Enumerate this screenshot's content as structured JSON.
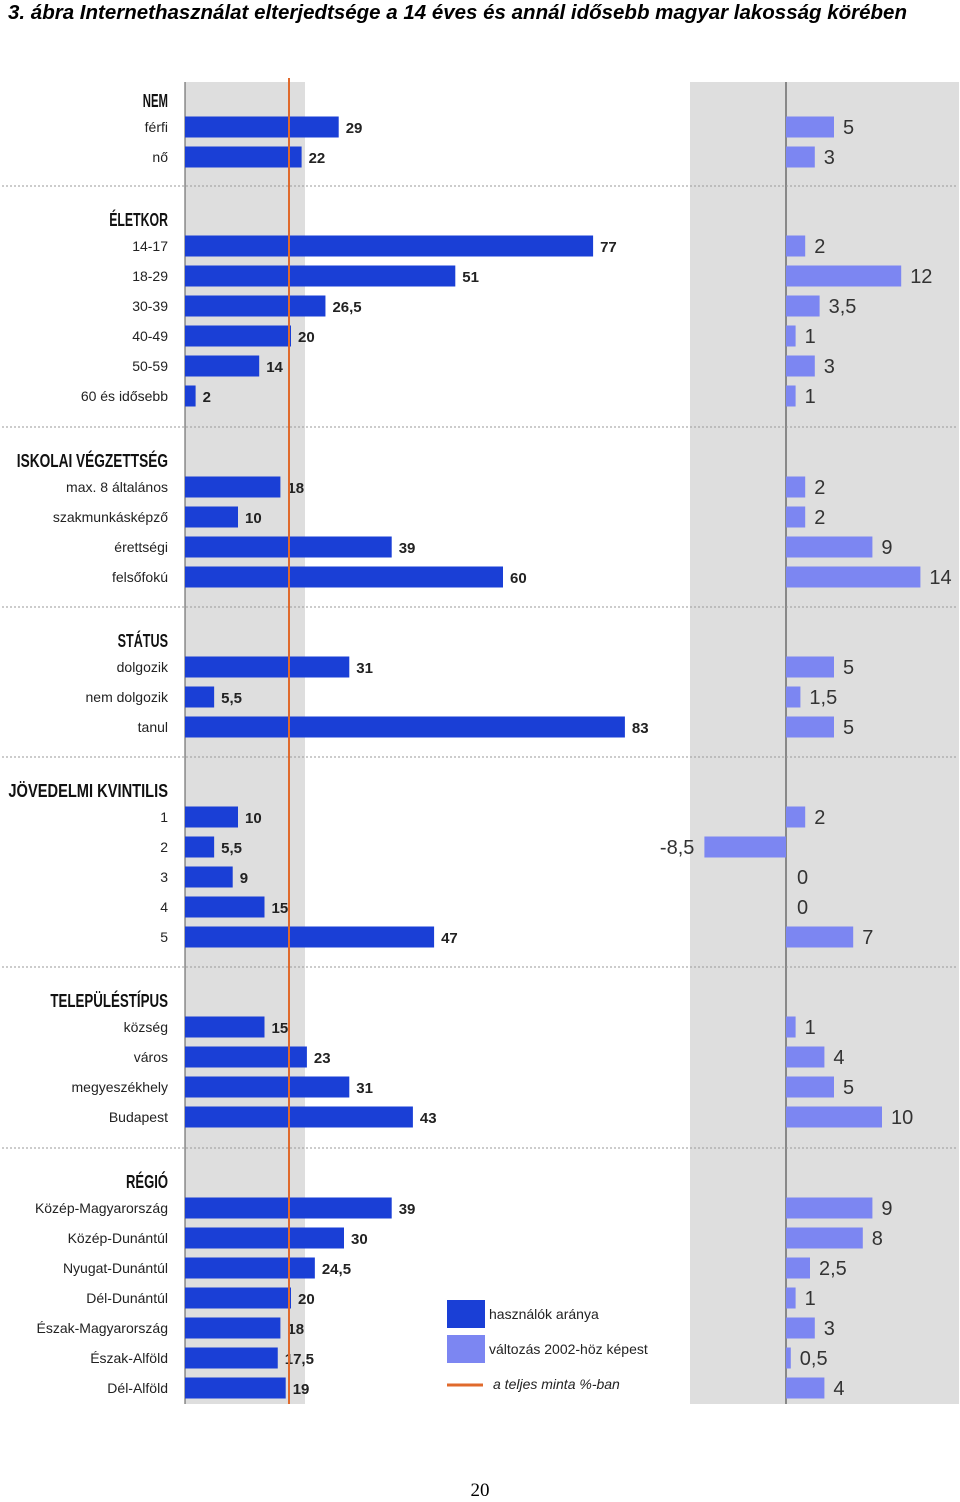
{
  "caption": "3. ábra Internethasználat elterjedtsége a 14 éves és annál idősebb magyar lakosság körében",
  "page_number": "20",
  "colors": {
    "usage_bar": "#1a3fd6",
    "change_bar": "#7c86f2",
    "shaded_panel": "#dedede",
    "sample_line": "#e06a2c"
  },
  "chart_data": {
    "type": "bar",
    "orientation": "horizontal",
    "sample_average": 20,
    "usage_axis_range": [
      0,
      100
    ],
    "change_axis_range": [
      -10,
      20
    ],
    "groups": [
      {
        "title": "NEM",
        "items": [
          {
            "label": "férfi",
            "usage": 29,
            "usage_label": "29",
            "change": 5,
            "change_label": "5"
          },
          {
            "label": "nő",
            "usage": 22,
            "usage_label": "22",
            "change": 3,
            "change_label": "3"
          }
        ]
      },
      {
        "title": "ÉLETKOR",
        "items": [
          {
            "label": "14-17",
            "usage": 77,
            "usage_label": "77",
            "change": 2,
            "change_label": "2"
          },
          {
            "label": "18-29",
            "usage": 51,
            "usage_label": "51",
            "change": 12,
            "change_label": "12"
          },
          {
            "label": "30-39",
            "usage": 26.5,
            "usage_label": "26,5",
            "change": 3.5,
            "change_label": "3,5"
          },
          {
            "label": "40-49",
            "usage": 20,
            "usage_label": "20",
            "change": 1,
            "change_label": "1"
          },
          {
            "label": "50-59",
            "usage": 14,
            "usage_label": "14",
            "change": 3,
            "change_label": "3"
          },
          {
            "label": "60 és idősebb",
            "usage": 2,
            "usage_label": "2",
            "change": 1,
            "change_label": "1"
          }
        ]
      },
      {
        "title": "ISKOLAI VÉGZETTSÉG",
        "items": [
          {
            "label": "max. 8 általános",
            "usage": 18,
            "usage_label": "18",
            "change": 2,
            "change_label": "2"
          },
          {
            "label": "szakmunkásképző",
            "usage": 10,
            "usage_label": "10",
            "change": 2,
            "change_label": "2"
          },
          {
            "label": "érettségi",
            "usage": 39,
            "usage_label": "39",
            "change": 9,
            "change_label": "9"
          },
          {
            "label": "felsőfokú",
            "usage": 60,
            "usage_label": "60",
            "change": 14,
            "change_label": "14"
          }
        ]
      },
      {
        "title": "STÁTUS",
        "items": [
          {
            "label": "dolgozik",
            "usage": 31,
            "usage_label": "31",
            "change": 5,
            "change_label": "5"
          },
          {
            "label": "nem dolgozik",
            "usage": 5.5,
            "usage_label": "5,5",
            "change": 1.5,
            "change_label": "1,5"
          },
          {
            "label": "tanul",
            "usage": 83,
            "usage_label": "83",
            "change": 5,
            "change_label": "5"
          }
        ]
      },
      {
        "title": "JÖVEDELMI KVINTILIS",
        "items": [
          {
            "label": "1",
            "usage": 10,
            "usage_label": "10",
            "change": 2,
            "change_label": "2"
          },
          {
            "label": "2",
            "usage": 5.5,
            "usage_label": "5,5",
            "change": -8.5,
            "change_label": "-8,5"
          },
          {
            "label": "3",
            "usage": 9,
            "usage_label": "9",
            "change": 0,
            "change_label": "0"
          },
          {
            "label": "4",
            "usage": 15,
            "usage_label": "15",
            "change": 0,
            "change_label": "0"
          },
          {
            "label": "5",
            "usage": 47,
            "usage_label": "47",
            "change": 7,
            "change_label": "7"
          }
        ]
      },
      {
        "title": "TELEPÜLÉSTÍPUS",
        "items": [
          {
            "label": "község",
            "usage": 15,
            "usage_label": "15",
            "change": 1,
            "change_label": "1"
          },
          {
            "label": "város",
            "usage": 23,
            "usage_label": "23",
            "change": 4,
            "change_label": "4"
          },
          {
            "label": "megyeszékhely",
            "usage": 31,
            "usage_label": "31",
            "change": 5,
            "change_label": "5"
          },
          {
            "label": "Budapest",
            "usage": 43,
            "usage_label": "43",
            "change": 10,
            "change_label": "10"
          }
        ]
      },
      {
        "title": "RÉGIÓ",
        "items": [
          {
            "label": "Közép-Magyarország",
            "usage": 39,
            "usage_label": "39",
            "change": 9,
            "change_label": "9"
          },
          {
            "label": "Közép-Dunántúl",
            "usage": 30,
            "usage_label": "30",
            "change": 8,
            "change_label": "8"
          },
          {
            "label": "Nyugat-Dunántúl",
            "usage": 24.5,
            "usage_label": "24,5",
            "change": 2.5,
            "change_label": "2,5"
          },
          {
            "label": "Dél-Dunántúl",
            "usage": 20,
            "usage_label": "20",
            "change": 1,
            "change_label": "1"
          },
          {
            "label": "Észak-Magyarország",
            "usage": 18,
            "usage_label": "18",
            "change": 3,
            "change_label": "3"
          },
          {
            "label": "Észak-Alföld",
            "usage": 17.5,
            "usage_label": "17,5",
            "change": 0.5,
            "change_label": "0,5"
          },
          {
            "label": "Dél-Alföld",
            "usage": 19,
            "usage_label": "19",
            "change": 4,
            "change_label": "4"
          }
        ]
      }
    ],
    "legend": {
      "placement": "bottom-center",
      "entries": [
        {
          "label": "használók aránya",
          "kind": "usage"
        },
        {
          "label": "változás 2002-höz képest",
          "kind": "change"
        },
        {
          "label": "a teljes minta %-ban",
          "kind": "sample-line"
        }
      ]
    }
  }
}
